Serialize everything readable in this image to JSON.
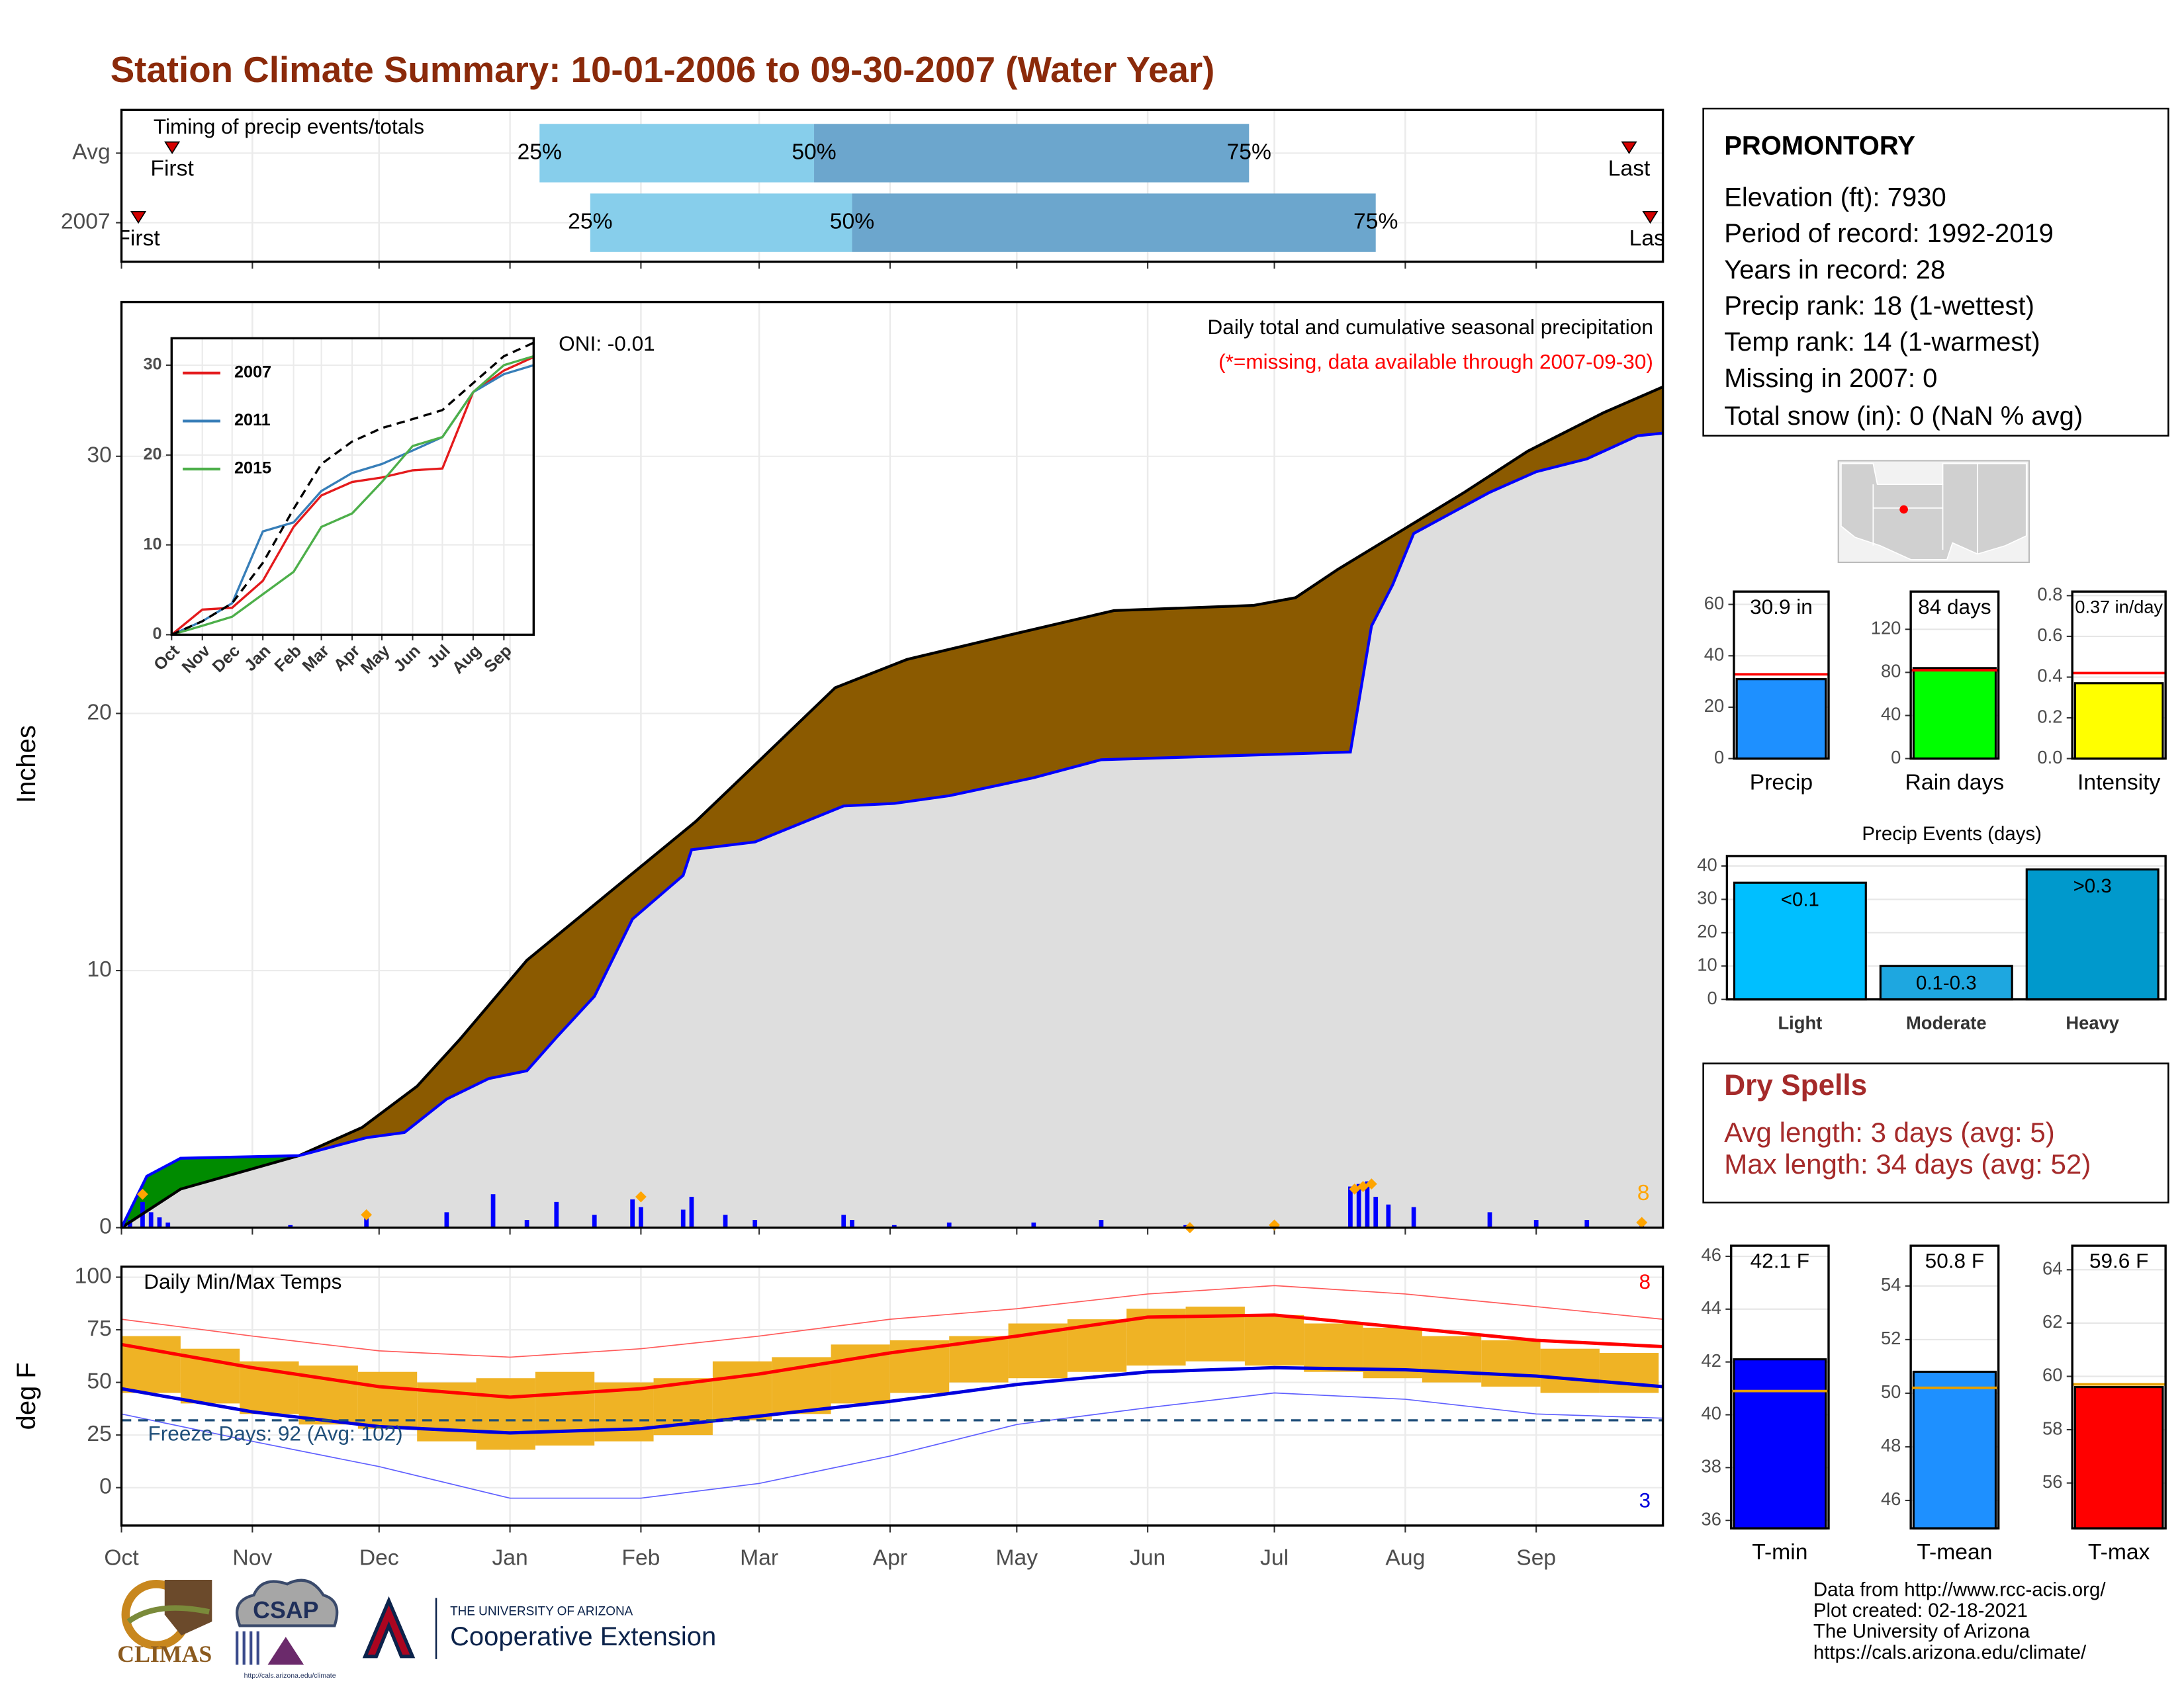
{
  "title": "Station Climate Summary: 10-01-2006 to 09-30-2007 (Water Year)",
  "station": {
    "name": "PROMONTORY",
    "lines": [
      "Elevation (ft): 7930",
      "Period of record: 1992-2019",
      "Years in record: 28",
      "Precip rank: 18 (1-wettest)",
      "Temp rank: 14 (1-warmest)",
      "Missing in 2007: 0",
      "Total snow (in): 0 (NaN % avg)"
    ]
  },
  "dry_spells": {
    "title": "Dry Spells",
    "lines": [
      "Avg length: 3 days (avg: 5)",
      "Max length: 34 days (avg: 52)"
    ]
  },
  "footer": [
    "Data from http://www.rcc-acis.org/",
    "Plot created: 02-18-2021",
    "The University of Arizona",
    "https://cals.arizona.edu/climate/"
  ],
  "logos": [
    "CLIMAS",
    "CSAP",
    "http://cals.arizona.edu/climate",
    "THE UNIVERSITY OF ARIZONA",
    "Cooperative Extension"
  ],
  "chart_data": [
    {
      "type": "timing",
      "title": "Timing of precip events/totals",
      "categories": [
        "Avg",
        "2007"
      ],
      "labels": [
        "First",
        "25%",
        "50%",
        "75%",
        "Last"
      ],
      "first": [
        12,
        4
      ],
      "p25": [
        99,
        111
      ],
      "p50": [
        164,
        173
      ],
      "p75": [
        267,
        297
      ],
      "last": [
        357,
        362
      ],
      "colors": [
        "#87ceeb",
        "#6ca6cd",
        "#d40000"
      ],
      "xlim": [
        0,
        365
      ],
      "xticks": [
        0,
        31,
        61,
        92,
        123,
        151,
        182,
        212,
        243,
        273,
        304,
        335
      ],
      "grid": true
    },
    {
      "type": "area",
      "ylabel": "Inches",
      "annotations": [
        "Daily total and cumulative seasonal precipitation",
        "(*=missing, data available through 2007-09-30)",
        "ONI: -0.01",
        "8"
      ],
      "series": [
        {
          "color": "#000000",
          "fill": "#8b5a00",
          "x": [
            0,
            14,
            42,
            57,
            70,
            80,
            96,
            116,
            136,
            150,
            169,
            186,
            209,
            235,
            268,
            278,
            288,
            301,
            318,
            333,
            351,
            365
          ],
          "values": [
            0,
            1.5,
            2.8,
            3.9,
            5.5,
            7.3,
            10.4,
            13.1,
            15.8,
            18.0,
            21.0,
            22.1,
            23.0,
            24.0,
            24.2,
            24.5,
            25.6,
            26.9,
            28.6,
            30.2,
            31.7,
            32.7
          ]
        },
        {
          "color": "#0000ff",
          "fill": "#008b00",
          "x": [
            0,
            6,
            14,
            42,
            58,
            67,
            77,
            87,
            96,
            103,
            112,
            121,
            133,
            135,
            150,
            171,
            183,
            196,
            216,
            232,
            252,
            291,
            296,
            301,
            306,
            324,
            335,
            347,
            359,
            365
          ],
          "values": [
            0,
            2.0,
            2.7,
            2.8,
            3.5,
            3.7,
            5.0,
            5.8,
            6.1,
            7.4,
            9.0,
            12.0,
            13.7,
            14.7,
            15.0,
            16.4,
            16.5,
            16.8,
            17.5,
            18.2,
            18.3,
            18.5,
            23.4,
            25.0,
            27.0,
            28.6,
            29.4,
            29.9,
            30.8,
            30.9
          ]
        }
      ],
      "daily": {
        "color": "#0000ff",
        "x": [
          2,
          5,
          7,
          9,
          11,
          40,
          58,
          77,
          88,
          96,
          103,
          112,
          121,
          123,
          133,
          135,
          143,
          150,
          171,
          173,
          183,
          196,
          216,
          232,
          252,
          291,
          293,
          295,
          297,
          300,
          306,
          324,
          335,
          347,
          360
        ],
        "values": [
          0.3,
          1.0,
          0.6,
          0.4,
          0.2,
          0.1,
          0.4,
          0.6,
          1.3,
          0.3,
          1.0,
          0.5,
          1.1,
          0.8,
          0.7,
          1.2,
          0.5,
          0.3,
          0.5,
          0.3,
          0.1,
          0.2,
          0.2,
          0.3,
          0.1,
          1.6,
          1.7,
          1.8,
          1.2,
          0.9,
          0.8,
          0.6,
          0.3,
          0.3,
          0.2
        ]
      },
      "extremes": {
        "color": "#ffa500",
        "x": [
          5,
          58,
          123,
          253,
          273,
          292,
          294,
          296,
          360
        ],
        "values": [
          1.3,
          0.5,
          1.2,
          0,
          0.1,
          1.5,
          1.6,
          1.7,
          0.2
        ]
      },
      "background": "#dedede",
      "xlim": [
        0,
        365
      ],
      "xticks": [
        0,
        31,
        61,
        92,
        123,
        151,
        182,
        212,
        243,
        273,
        304,
        335
      ],
      "ylim": [
        0,
        36
      ],
      "yticks": [
        0,
        10,
        20,
        30
      ],
      "grid": true
    },
    {
      "type": "line",
      "x": [
        0,
        31,
        61,
        92,
        123,
        151,
        182,
        212,
        243,
        273,
        304,
        335,
        365
      ],
      "series": [
        {
          "name": "2007",
          "color": "#e41a1c",
          "values": [
            0,
            2.8,
            3.0,
            6.0,
            12.0,
            15.5,
            17.0,
            17.5,
            18.3,
            18.5,
            27.0,
            29.4,
            30.9
          ]
        },
        {
          "name": "2011",
          "color": "#377eb8",
          "values": [
            0,
            1.5,
            3.5,
            11.5,
            12.5,
            16.0,
            18.0,
            19.0,
            20.5,
            22.0,
            27.0,
            29.0,
            30.0
          ]
        },
        {
          "name": "2015",
          "color": "#4daf4a",
          "values": [
            0,
            1.0,
            2.0,
            4.5,
            7.0,
            12.0,
            13.5,
            17.0,
            21.0,
            22.0,
            27.0,
            30.0,
            31.0
          ]
        },
        {
          "color": "#000000",
          "dashed": true,
          "values": [
            0,
            1.5,
            3.5,
            8.0,
            14.0,
            19.0,
            21.5,
            23.0,
            24.0,
            25.0,
            28.0,
            31.0,
            32.5
          ]
        }
      ],
      "xlim": [
        0,
        365
      ],
      "xticks": [
        {
          "value": 0,
          "label": "Oct"
        },
        {
          "value": 31,
          "label": "Nov"
        },
        {
          "value": 61,
          "label": "Dec"
        },
        {
          "value": 92,
          "label": "Jan"
        },
        {
          "value": 123,
          "label": "Feb"
        },
        {
          "value": 151,
          "label": "Mar"
        },
        {
          "value": 182,
          "label": "Apr"
        },
        {
          "value": 212,
          "label": "May"
        },
        {
          "value": 243,
          "label": "Jun"
        },
        {
          "value": 273,
          "label": "Jul"
        },
        {
          "value": 304,
          "label": "Aug"
        },
        {
          "value": 335,
          "label": "Sep"
        }
      ],
      "ylim": [
        0,
        33
      ],
      "yticks": [
        0,
        10,
        20,
        30
      ],
      "grid": true,
      "legend": "top-left"
    },
    {
      "type": "range",
      "ylabel": "deg F",
      "annotations": [
        "Daily Min/Max Temps",
        "Freeze Days: 92 (Avg: 102)",
        "8",
        "3"
      ],
      "x": [
        0,
        31,
        61,
        92,
        123,
        151,
        182,
        212,
        243,
        273,
        304,
        335,
        365
      ],
      "record_max": [
        80,
        72,
        65,
        62,
        66,
        72,
        80,
        85,
        92,
        96,
        92,
        86,
        80
      ],
      "record_min": [
        35,
        22,
        10,
        -5,
        -5,
        2,
        15,
        30,
        38,
        45,
        42,
        35,
        33
      ],
      "avg_max": [
        68,
        57,
        48,
        43,
        47,
        54,
        64,
        72,
        81,
        82,
        76,
        70,
        67
      ],
      "avg_min": [
        47,
        36,
        29,
        26,
        28,
        34,
        41,
        49,
        55,
        57,
        56,
        53,
        48
      ],
      "daily": {
        "x": [
          0,
          14,
          28,
          42,
          56,
          70,
          84,
          98,
          112,
          126,
          140,
          154,
          168,
          182,
          196,
          210,
          224,
          238,
          252,
          266,
          280,
          294,
          308,
          322,
          336,
          350
        ],
        "max": [
          72,
          66,
          60,
          58,
          55,
          50,
          52,
          55,
          50,
          52,
          60,
          62,
          68,
          70,
          72,
          78,
          80,
          85,
          86,
          82,
          78,
          76,
          72,
          70,
          66,
          64
        ],
        "min": [
          45,
          40,
          35,
          30,
          28,
          22,
          18,
          20,
          22,
          25,
          32,
          35,
          40,
          45,
          50,
          52,
          55,
          58,
          60,
          58,
          55,
          52,
          50,
          48,
          45,
          45
        ]
      },
      "threshold": 32,
      "colors": {
        "daily": "#efb325",
        "record_max": "#ff5a5a",
        "record_min": "#6060ff",
        "avg_max": "#ff0000",
        "avg_min": "#0000dd",
        "threshold": "#1f4e79"
      },
      "xlim": [
        0,
        365
      ],
      "xticks": [
        {
          "value": 0,
          "label": "Oct"
        },
        {
          "value": 31,
          "label": "Nov"
        },
        {
          "value": 61,
          "label": "Dec"
        },
        {
          "value": 92,
          "label": "Jan"
        },
        {
          "value": 123,
          "label": "Feb"
        },
        {
          "value": 151,
          "label": "Mar"
        },
        {
          "value": 182,
          "label": "Apr"
        },
        {
          "value": 212,
          "label": "May"
        },
        {
          "value": 243,
          "label": "Jun"
        },
        {
          "value": 273,
          "label": "Jul"
        },
        {
          "value": 304,
          "label": "Aug"
        },
        {
          "value": 335,
          "label": "Sep"
        }
      ],
      "ylim": [
        -18,
        105
      ],
      "yticks": [
        0,
        25,
        50,
        75,
        100
      ],
      "grid": true
    },
    {
      "type": "bar",
      "categories": [
        "Precip"
      ],
      "values": [
        30.9
      ],
      "value_labels": [
        "30.9 in"
      ],
      "colors": [
        "#1e90ff"
      ],
      "reference": 32.8,
      "reference_color": "#ff0000",
      "ylim": [
        0,
        65
      ],
      "yticks": [
        0,
        20,
        40,
        60
      ],
      "grid": true
    },
    {
      "type": "bar",
      "categories": [
        "Rain days"
      ],
      "values": [
        84
      ],
      "value_labels": [
        "84 days"
      ],
      "colors": [
        "#00ff00"
      ],
      "reference": 82,
      "reference_color": "#ff0000",
      "ylim": [
        0,
        155
      ],
      "yticks": [
        0,
        40,
        80,
        120
      ],
      "grid": true
    },
    {
      "type": "bar",
      "categories": [
        "Intensity"
      ],
      "values": [
        0.37
      ],
      "value_labels": [
        "0.37 in/day"
      ],
      "colors": [
        "#ffff00"
      ],
      "reference": 0.42,
      "reference_color": "#ff0000",
      "ylim": [
        0,
        0.82
      ],
      "yticks": [
        {
          "value": 0,
          "label": "0.0"
        },
        0.2,
        0.4,
        0.6,
        0.8
      ],
      "grid": true
    },
    {
      "type": "bar",
      "title": "Precip Events (days)",
      "categories": [
        "Light",
        "Moderate",
        "Heavy"
      ],
      "values": [
        35,
        10,
        39
      ],
      "bin_labels": [
        "<0.1",
        "0.1-0.3",
        ">0.3"
      ],
      "colors": [
        "#00bfff",
        "#1ea7e0",
        "#0099cc"
      ],
      "ylim": [
        0,
        43
      ],
      "yticks": [
        0,
        10,
        20,
        30,
        40
      ],
      "grid": true
    },
    {
      "type": "bar",
      "categories": [
        "T-min"
      ],
      "values": [
        42.1
      ],
      "value_labels": [
        "42.1 F"
      ],
      "colors": [
        "#0000ff"
      ],
      "reference": 40.9,
      "reference_color": "#e69f00",
      "ylim": [
        35.7,
        46.4
      ],
      "yticks": [
        36,
        38,
        40,
        42,
        44,
        46
      ],
      "grid": true
    },
    {
      "type": "bar",
      "categories": [
        "T-mean"
      ],
      "values": [
        50.8
      ],
      "value_labels": [
        "50.8 F"
      ],
      "colors": [
        "#1e90ff"
      ],
      "reference": 50.2,
      "reference_color": "#e69f00",
      "ylim": [
        44.96,
        55.5
      ],
      "yticks": [
        46,
        48,
        50,
        52,
        54
      ],
      "grid": true
    },
    {
      "type": "bar",
      "categories": [
        "T-max"
      ],
      "values": [
        59.6
      ],
      "value_labels": [
        "59.6 F"
      ],
      "colors": [
        "#ff0000"
      ],
      "reference": 59.7,
      "reference_color": "#e69f00",
      "ylim": [
        54.3,
        64.9
      ],
      "yticks": [
        56,
        58,
        60,
        62,
        64
      ],
      "grid": true
    }
  ]
}
